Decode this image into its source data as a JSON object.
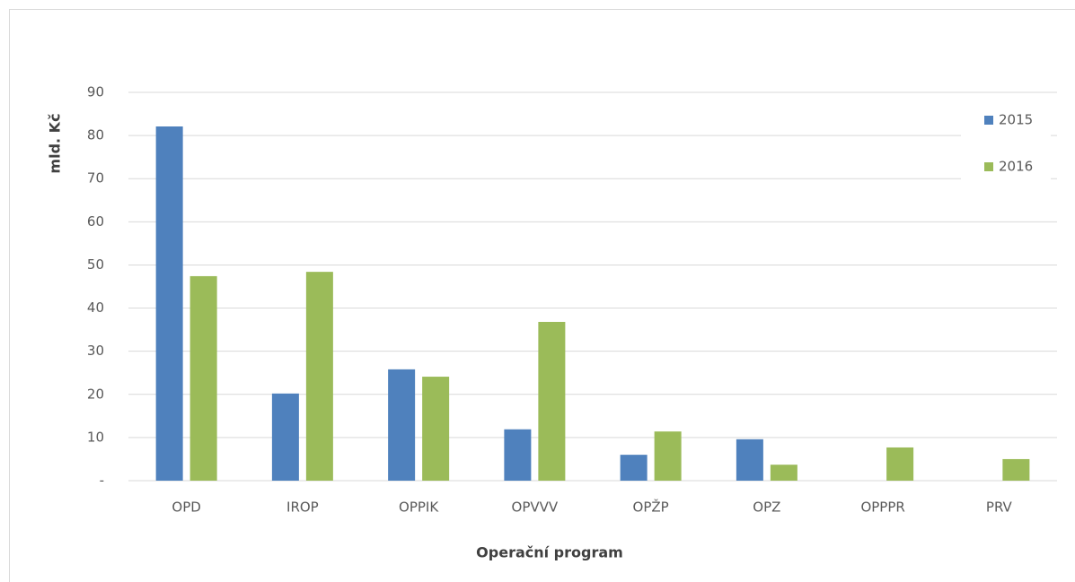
{
  "chart_data": {
    "type": "bar",
    "categories": [
      "OPD",
      "IROP",
      "OPPIK",
      "OPVVV",
      "OPŽP",
      "OPZ",
      "OPPPR",
      "PRV"
    ],
    "series": [
      {
        "name": "2015",
        "color": "#4f81bd",
        "values": [
          82.1,
          20.2,
          25.8,
          11.9,
          6.0,
          9.6,
          null,
          null
        ]
      },
      {
        "name": "2016",
        "color": "#9bbb59",
        "values": [
          47.4,
          48.4,
          24.1,
          36.8,
          11.4,
          3.7,
          7.7,
          5.0
        ]
      }
    ],
    "ylim": [
      0,
      90
    ],
    "yticks": [
      {
        "value": 0,
        "label": "-"
      },
      10,
      20,
      30,
      40,
      50,
      60,
      70,
      80,
      90
    ],
    "x_label": "Operační program",
    "y_label": "mld. Kč",
    "grid": true,
    "legend": "upper right"
  }
}
